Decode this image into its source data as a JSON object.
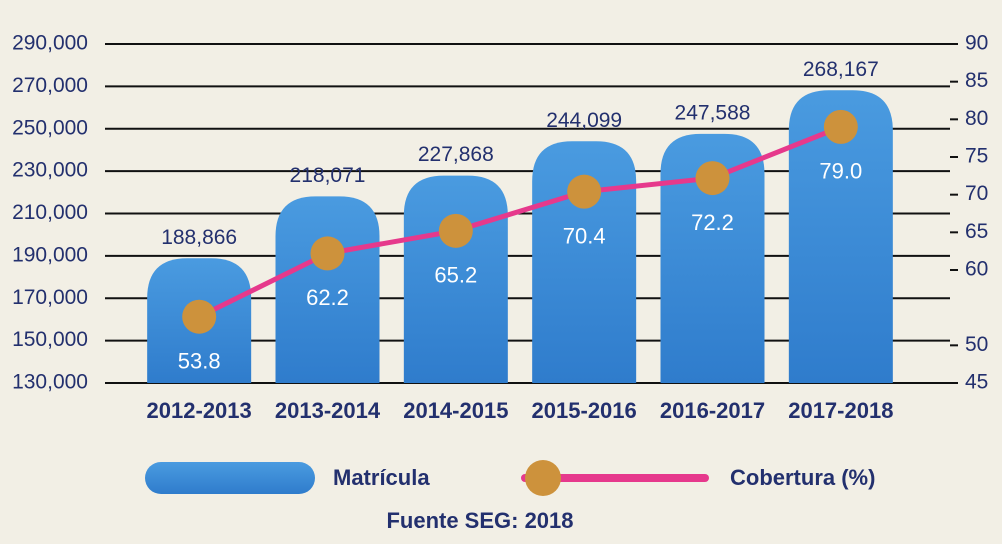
{
  "chart_data": {
    "type": "bar",
    "categories": [
      "2012-2013",
      "2013-2014",
      "2014-2015",
      "2015-2016",
      "2016-2017",
      "2017-2018"
    ],
    "series": [
      {
        "name": "Matrícula",
        "type": "bar",
        "color": "#3a8ad6",
        "values": [
          188866,
          218071,
          227868,
          244099,
          247588,
          268167
        ],
        "value_labels": [
          "188,866",
          "218,071",
          "227,868",
          "244,099",
          "247,588",
          "268,167"
        ]
      },
      {
        "name": "Cobertura (%)",
        "type": "line",
        "axis": "y2",
        "color": "#e6398c",
        "marker_color": "#cd923c",
        "values": [
          53.8,
          62.2,
          65.2,
          70.4,
          72.2,
          79.0
        ],
        "value_labels": [
          "53.8",
          "62.2",
          "65.2",
          "70.4",
          "72.2",
          "79.0"
        ]
      }
    ],
    "ylim": [
      130000,
      290000
    ],
    "yticks": [
      {
        "value": 130000,
        "label": "130,000"
      },
      {
        "value": 150000,
        "label": "150,000"
      },
      {
        "value": 170000,
        "label": "170,000"
      },
      {
        "value": 190000,
        "label": "190,000"
      },
      {
        "value": 210000,
        "label": "210,000"
      },
      {
        "value": 230000,
        "label": "230,000"
      },
      {
        "value": 250000,
        "label": "250,000"
      },
      {
        "value": 270000,
        "label": "270,000"
      },
      {
        "value": 290000,
        "label": "290,000"
      }
    ],
    "y2lim": [
      45,
      90
    ],
    "y2ticks": [
      45,
      50,
      60,
      65,
      70,
      75,
      80,
      85,
      90
    ],
    "grid": true,
    "source": "Fuente SEG: 2018"
  }
}
